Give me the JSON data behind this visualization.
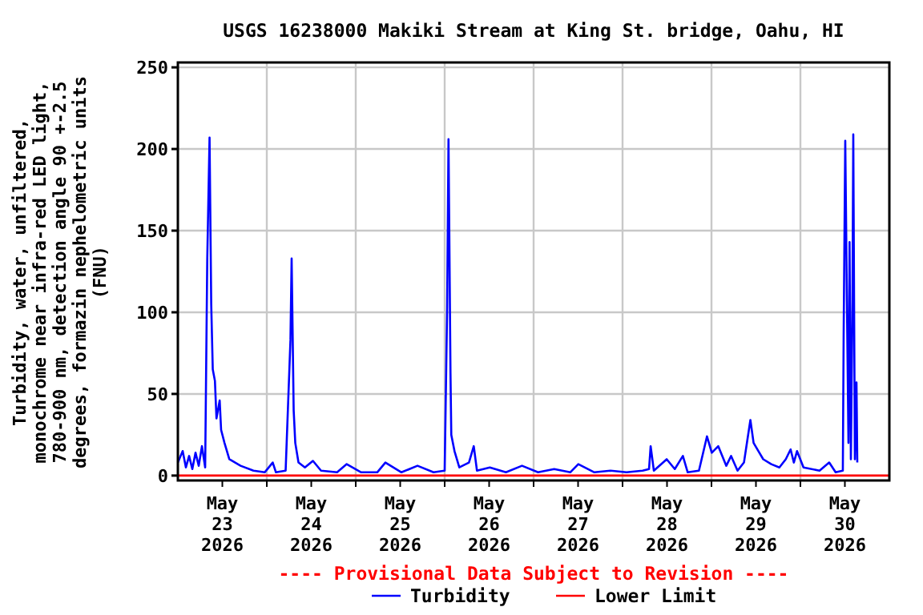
{
  "chart_data": {
    "type": "line",
    "title": "USGS 16238000 Makiki Stream at King St. bridge, Oahu, HI",
    "ylabel": "Turbidity, water, unfiltered,\nmonochrome near infra-red LED light,\n780-900 nm, detection angle 90 +-2.5\ndegrees, formazin nephelometric units\n(FNU)",
    "annotations": [
      "---- Provisional Data Subject to Revision ----"
    ],
    "xlim": [
      "2026-05-23T00:00",
      "2026-05-31T00:00"
    ],
    "xticks": [
      {
        "value": "2026-05-23T12:00",
        "label": "May\n23\n2026"
      },
      {
        "value": "2026-05-24T12:00",
        "label": "May\n24\n2026"
      },
      {
        "value": "2026-05-25T12:00",
        "label": "May\n25\n2026"
      },
      {
        "value": "2026-05-26T12:00",
        "label": "May\n26\n2026"
      },
      {
        "value": "2026-05-27T12:00",
        "label": "May\n27\n2026"
      },
      {
        "value": "2026-05-28T12:00",
        "label": "May\n28\n2026"
      },
      {
        "value": "2026-05-29T12:00",
        "label": "May\n29\n2026"
      },
      {
        "value": "2026-05-30T12:00",
        "label": "May\n30\n2026"
      },
      {
        "value": "2026-05-24T00:00",
        "label": null
      },
      {
        "value": "2026-05-25T00:00",
        "label": null
      },
      {
        "value": "2026-05-26T00:00",
        "label": null
      },
      {
        "value": "2026-05-27T00:00",
        "label": null
      },
      {
        "value": "2026-05-28T00:00",
        "label": null
      },
      {
        "value": "2026-05-29T00:00",
        "label": null
      },
      {
        "value": "2026-05-30T00:00",
        "label": null
      }
    ],
    "ylim": [
      -3,
      253
    ],
    "yticks": [
      0,
      50,
      100,
      150,
      200,
      250
    ],
    "grid": true,
    "legend": "bottom",
    "marker": "none",
    "line_style": "solid",
    "series": [
      {
        "name": "Turbidity",
        "color": "#0000ff",
        "x": [
          "2026-05-23T00:00",
          "2026-05-23T01:18",
          "2026-05-23T02:10",
          "2026-05-23T03:02",
          "2026-05-23T03:54",
          "2026-05-23T04:46",
          "2026-05-23T05:38",
          "2026-05-23T06:30",
          "2026-05-23T07:22",
          "2026-05-23T07:56",
          "2026-05-23T08:33",
          "2026-05-23T09:00",
          "2026-05-23T09:25",
          "2026-05-23T10:00",
          "2026-05-23T10:25",
          "2026-05-23T11:17",
          "2026-05-23T11:40",
          "2026-05-23T12:35",
          "2026-05-23T13:53",
          "2026-05-23T16:55",
          "2026-05-23T20:24",
          "2026-05-23T23:26",
          "2026-05-24T01:36",
          "2026-05-24T02:28",
          "2026-05-24T05:05",
          "2026-05-24T06:23",
          "2026-05-24T06:42",
          "2026-05-24T07:15",
          "2026-05-24T07:41",
          "2026-05-24T08:33",
          "2026-05-24T10:17",
          "2026-05-24T12:27",
          "2026-05-24T14:38",
          "2026-05-24T18:58",
          "2026-05-24T21:34",
          "2026-05-25T01:28",
          "2026-05-25T05:48",
          "2026-05-25T08:00",
          "2026-05-25T12:20",
          "2026-05-25T16:40",
          "2026-05-25T21:00",
          "2026-05-26T00:00",
          "2026-05-26T00:40",
          "2026-05-26T01:02",
          "2026-05-26T01:34",
          "2026-05-26T01:47",
          "2026-05-26T02:39",
          "2026-05-26T03:57",
          "2026-05-26T06:33",
          "2026-05-26T07:51",
          "2026-05-26T08:43",
          "2026-05-26T12:11",
          "2026-05-26T16:32",
          "2026-05-26T20:52",
          "2026-05-27T01:12",
          "2026-05-27T05:33",
          "2026-05-27T09:53",
          "2026-05-27T12:04",
          "2026-05-27T16:24",
          "2026-05-27T20:45",
          "2026-05-28T01:05",
          "2026-05-28T05:25",
          "2026-05-28T07:09",
          "2026-05-28T07:35",
          "2026-05-28T08:27",
          "2026-05-28T11:55",
          "2026-05-28T14:06",
          "2026-05-28T16:17",
          "2026-05-28T17:35",
          "2026-05-28T20:37",
          "2026-05-28T22:47",
          "2026-05-29T00:05",
          "2026-05-29T01:50",
          "2026-05-29T04:00",
          "2026-05-29T05:18",
          "2026-05-29T07:02",
          "2026-05-29T08:46",
          "2026-05-29T09:38",
          "2026-05-29T10:30",
          "2026-05-29T11:22",
          "2026-05-29T12:40",
          "2026-05-29T13:58",
          "2026-05-29T16:08",
          "2026-05-29T18:19",
          "2026-05-29T20:03",
          "2026-05-29T21:21",
          "2026-05-29T22:14",
          "2026-05-29T23:05",
          "2026-05-30T00:50",
          "2026-05-30T05:10",
          "2026-05-30T07:46",
          "2026-05-30T09:30",
          "2026-05-30T11:27",
          "2026-05-30T11:40",
          "2026-05-30T12:06",
          "2026-05-30T12:32",
          "2026-05-30T12:58",
          "2026-05-30T13:16",
          "2026-05-30T13:37",
          "2026-05-30T14:03",
          "2026-05-30T14:16",
          "2026-05-30T14:29",
          "2026-05-30T14:42",
          "2026-05-30T15:08",
          "2026-05-30T15:21"
        ],
        "values": [
          8,
          15,
          5,
          12,
          4,
          14,
          6,
          18,
          5,
          133,
          207,
          105,
          65,
          58,
          35,
          46,
          28,
          20,
          10,
          6,
          3,
          2,
          8,
          2,
          3,
          83,
          133,
          40,
          20,
          8,
          5,
          9,
          3,
          2,
          7,
          2,
          2,
          8,
          2,
          6,
          2,
          3,
          103,
          206,
          63,
          25,
          15,
          5,
          8,
          18,
          3,
          5,
          2,
          6,
          2,
          4,
          2,
          7,
          2,
          3,
          2,
          3,
          4,
          18,
          3,
          10,
          4,
          12,
          2,
          3,
          24,
          14,
          18,
          6,
          12,
          3,
          8,
          21,
          34,
          20,
          15,
          10,
          7,
          5,
          10,
          16,
          8,
          15,
          5,
          3,
          8,
          2,
          3,
          86,
          205,
          110,
          20,
          143,
          10,
          108,
          209,
          105,
          10,
          57,
          8
        ]
      },
      {
        "name": "Lower Limit",
        "color": "#ff0000",
        "x": [
          "2026-05-23T00:00",
          "2026-05-31T00:00"
        ],
        "values": [
          0,
          0
        ]
      }
    ]
  }
}
